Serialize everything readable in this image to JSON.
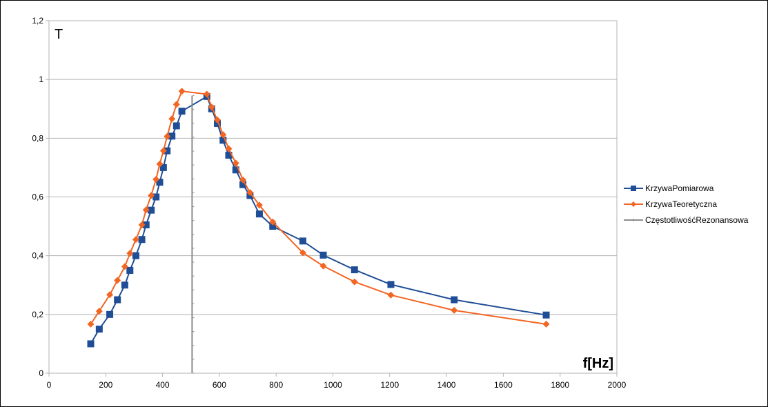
{
  "chart_data": {
    "type": "line",
    "xlabel": "f[Hz]",
    "ylabel": "T",
    "xlim": [
      0,
      2000
    ],
    "ylim": [
      0,
      1.2
    ],
    "x_ticks": [
      0,
      200,
      400,
      600,
      800,
      1000,
      1200,
      1400,
      1600,
      1800,
      2000
    ],
    "x_tick_labels": [
      "0",
      "200",
      "400",
      "600",
      "800",
      "1000",
      "1200",
      "1400",
      "1600",
      "1800",
      "2000"
    ],
    "y_ticks": [
      0,
      0.2,
      0.4,
      0.6,
      0.8,
      1,
      1.2
    ],
    "y_tick_labels": [
      "0",
      "0,2",
      "0,4",
      "0,6",
      "0,8",
      "1",
      "1,2"
    ],
    "grid": "horizontal",
    "legend": "right",
    "series": [
      {
        "name": "KrzywaPomiarowa",
        "color": "#1F4E96",
        "marker": "square",
        "points": [
          [
            147,
            0.1
          ],
          [
            177,
            0.15
          ],
          [
            214,
            0.2
          ],
          [
            241,
            0.25
          ],
          [
            267,
            0.3
          ],
          [
            285,
            0.35
          ],
          [
            306,
            0.4
          ],
          [
            327,
            0.455
          ],
          [
            342,
            0.505
          ],
          [
            360,
            0.555
          ],
          [
            377,
            0.6
          ],
          [
            390,
            0.65
          ],
          [
            403,
            0.7
          ],
          [
            416,
            0.757
          ],
          [
            433,
            0.807
          ],
          [
            449,
            0.842
          ],
          [
            468,
            0.892
          ],
          [
            556,
            0.942
          ],
          [
            573,
            0.9
          ],
          [
            593,
            0.85
          ],
          [
            613,
            0.793
          ],
          [
            633,
            0.742
          ],
          [
            658,
            0.692
          ],
          [
            683,
            0.642
          ],
          [
            708,
            0.605
          ],
          [
            741,
            0.542
          ],
          [
            788,
            0.5
          ],
          [
            894,
            0.45
          ],
          [
            966,
            0.402
          ],
          [
            1076,
            0.352
          ],
          [
            1204,
            0.302
          ],
          [
            1427,
            0.25
          ],
          [
            1751,
            0.198
          ]
        ]
      },
      {
        "name": "KrzywaTeoretyczna",
        "color": "#F26522",
        "marker": "diamond",
        "points": [
          [
            147,
            0.167
          ],
          [
            177,
            0.211
          ],
          [
            214,
            0.267
          ],
          [
            241,
            0.316
          ],
          [
            267,
            0.363
          ],
          [
            285,
            0.408
          ],
          [
            306,
            0.455
          ],
          [
            327,
            0.505
          ],
          [
            342,
            0.556
          ],
          [
            360,
            0.605
          ],
          [
            377,
            0.66
          ],
          [
            390,
            0.712
          ],
          [
            403,
            0.757
          ],
          [
            416,
            0.806
          ],
          [
            433,
            0.866
          ],
          [
            449,
            0.915
          ],
          [
            468,
            0.96
          ],
          [
            556,
            0.95
          ],
          [
            573,
            0.906
          ],
          [
            593,
            0.862
          ],
          [
            613,
            0.812
          ],
          [
            633,
            0.764
          ],
          [
            658,
            0.715
          ],
          [
            683,
            0.658
          ],
          [
            708,
            0.615
          ],
          [
            741,
            0.572
          ],
          [
            788,
            0.515
          ],
          [
            894,
            0.41
          ],
          [
            966,
            0.365
          ],
          [
            1076,
            0.311
          ],
          [
            1204,
            0.266
          ],
          [
            1427,
            0.214
          ],
          [
            1751,
            0.167
          ]
        ]
      },
      {
        "name": "CzęstotliwośćRezonansowa",
        "color": "#8C8C8C",
        "marker": "vertical-line",
        "x_value": 504,
        "y_range": [
          0,
          0.945
        ]
      }
    ]
  }
}
